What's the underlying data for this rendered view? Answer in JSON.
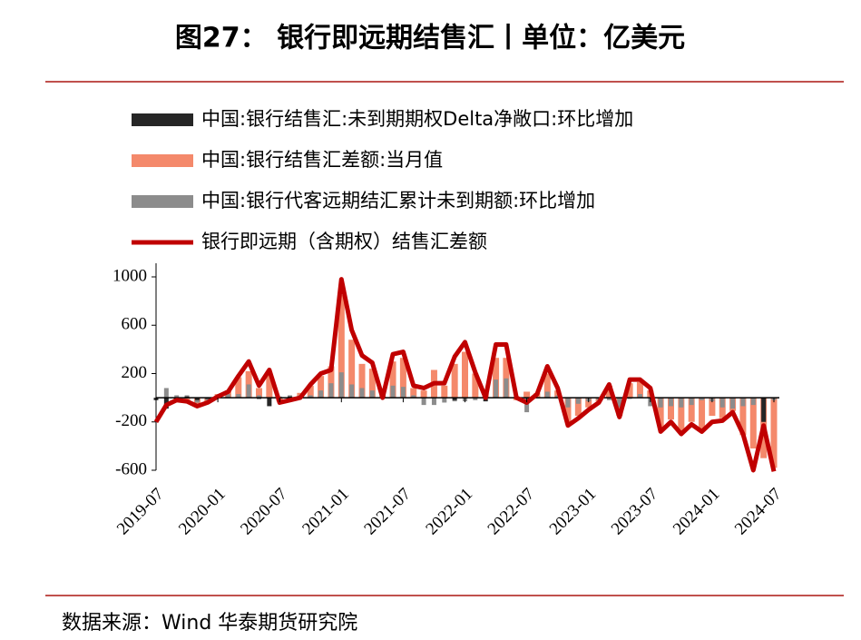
{
  "chart_data": {
    "type": "bar",
    "title": "图27：  银行即远期结售汇丨单位：亿美元",
    "source": "数据来源：Wind  华泰期货研究院",
    "categories": [
      "2019-07",
      null,
      null,
      null,
      null,
      null,
      "2020-01",
      null,
      null,
      null,
      null,
      null,
      "2020-07",
      null,
      null,
      null,
      null,
      null,
      "2021-01",
      null,
      null,
      null,
      null,
      null,
      "2021-07",
      null,
      null,
      null,
      null,
      null,
      "2022-01",
      null,
      null,
      null,
      null,
      null,
      "2022-07",
      null,
      null,
      null,
      null,
      null,
      "2023-01",
      null,
      null,
      null,
      null,
      null,
      "2023-07",
      null,
      null,
      null,
      null,
      null,
      "2024-01",
      null,
      null,
      null,
      null,
      null,
      "2024-07"
    ],
    "ylim": [
      -600,
      1000
    ],
    "yticks": [
      1000,
      600,
      200,
      -200,
      -600
    ],
    "series": [
      {
        "name": "中国:银行结售汇:未到期期权Delta净敞口:环比增加",
        "type": "bar",
        "color": "#262626",
        "values": [
          -20,
          -90,
          -20,
          10,
          -20,
          -10,
          0,
          0,
          0,
          0,
          -10,
          -70,
          0,
          10,
          0,
          0,
          0,
          0,
          0,
          0,
          0,
          0,
          0,
          0,
          0,
          0,
          0,
          0,
          0,
          -20,
          0,
          0,
          -30,
          0,
          0,
          0,
          0,
          0,
          0,
          0,
          0,
          0,
          0,
          0,
          0,
          0,
          0,
          0,
          0,
          0,
          0,
          0,
          0,
          0,
          0,
          0,
          0,
          0,
          0,
          -200,
          0
        ]
      },
      {
        "name": "中国:银行结售汇差额:当月值",
        "type": "bar",
        "color": "#f4896b",
        "values": [
          0,
          0,
          -20,
          -30,
          -50,
          -30,
          30,
          60,
          170,
          220,
          80,
          200,
          -30,
          -10,
          40,
          100,
          180,
          260,
          850,
          480,
          280,
          240,
          20,
          300,
          330,
          80,
          60,
          230,
          100,
          280,
          380,
          200,
          40,
          330,
          330,
          -20,
          50,
          40,
          200,
          60,
          -200,
          -150,
          -80,
          -30,
          100,
          -150,
          120,
          130,
          60,
          -250,
          -180,
          -280,
          -200,
          -260,
          -150,
          -170,
          -110,
          -310,
          -420,
          -500,
          -580
        ]
      },
      {
        "name": "中国:银行代客远期结汇累计未到期额:环比增加",
        "type": "bar",
        "color": "#8c8c8c",
        "values": [
          0,
          80,
          20,
          20,
          -40,
          -20,
          20,
          30,
          30,
          110,
          20,
          -10,
          10,
          20,
          20,
          20,
          60,
          120,
          210,
          110,
          80,
          60,
          10,
          100,
          90,
          20,
          -60,
          -60,
          -40,
          -30,
          -30,
          -20,
          0,
          150,
          160,
          0,
          -120,
          0,
          50,
          20,
          -80,
          -50,
          -30,
          -20,
          -20,
          -80,
          -10,
          30,
          -70,
          -80,
          -70,
          -80,
          -60,
          -20,
          -30,
          -80,
          -90,
          -70,
          -60,
          -30,
          -20
        ]
      },
      {
        "name": "银行即远期（含期权）结售汇差额",
        "type": "line",
        "color": "#c00000",
        "values": [
          -200,
          -60,
          -20,
          -30,
          -70,
          -40,
          10,
          50,
          180,
          300,
          100,
          230,
          -40,
          -20,
          0,
          110,
          200,
          230,
          980,
          560,
          350,
          290,
          0,
          360,
          380,
          100,
          80,
          120,
          120,
          340,
          460,
          210,
          0,
          440,
          440,
          0,
          -40,
          30,
          260,
          80,
          -230,
          -170,
          -100,
          -40,
          110,
          -160,
          150,
          150,
          80,
          -280,
          -200,
          -300,
          -220,
          -280,
          -200,
          -190,
          -120,
          -300,
          -600,
          -230,
          -610
        ]
      }
    ]
  }
}
